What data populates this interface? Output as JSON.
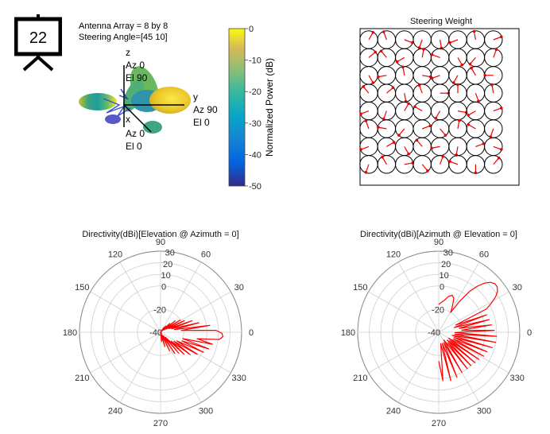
{
  "badge": {
    "number": "22"
  },
  "pattern3d": {
    "info_line1": "Antenna Array = 8 by 8",
    "info_line2": "Steering Angle=[45 10]",
    "axis_z": {
      "name": "z",
      "line1": "Az 0",
      "line2": "El 90"
    },
    "axis_y": {
      "name": "y",
      "line1": "Az 90",
      "line2": "El 0"
    },
    "axis_x": {
      "name": "x",
      "line1": "Az 0",
      "line2": "El 0"
    }
  },
  "colorbar": {
    "label": "Normalized Power (dB)",
    "ticks": [
      "0",
      "-10",
      "-20",
      "-30",
      "-40",
      "-50"
    ],
    "range": [
      -50,
      0
    ],
    "colormap": "parula"
  },
  "colors": {
    "trace": "#ff0000",
    "grid": "#cfcfcf",
    "circle": "#000000",
    "arrow": "#ee0000"
  },
  "chart_data": [
    {
      "type": "quiver",
      "title": "Steering Weight",
      "grid_size": [
        8,
        8
      ],
      "element": "unit circle",
      "phase_deg": [
        [
          60,
          110,
          340,
          250,
          280,
          200,
          100,
          20
        ],
        [
          40,
          130,
          210,
          80,
          160,
          300,
          230,
          70
        ],
        [
          300,
          190,
          100,
          350,
          200,
          240,
          120,
          180
        ],
        [
          130,
          40,
          280,
          110,
          0,
          90,
          290,
          100
        ],
        [
          200,
          250,
          60,
          150,
          240,
          350,
          210,
          20
        ],
        [
          110,
          170,
          230,
          20,
          310,
          80,
          150,
          250
        ],
        [
          200,
          30,
          300,
          130,
          190,
          260,
          20,
          340
        ],
        [
          250,
          120,
          10,
          310,
          70,
          160,
          270,
          50
        ]
      ]
    },
    {
      "type": "polar",
      "title": "Directivity(dBi)[Elevation @ Azimuth = 0]",
      "angle_ticks": [
        "0",
        "30",
        "60",
        "90",
        "120",
        "150",
        "180",
        "210",
        "240",
        "270",
        "300",
        "330"
      ],
      "r_ticks": [
        "-40",
        "-20",
        "0",
        "10",
        "20",
        "30"
      ],
      "rlim": [
        -40,
        30
      ],
      "angle_deg": [
        -90,
        -84,
        -78,
        -73,
        -69,
        -64,
        -60,
        -56,
        -52,
        -49,
        -46,
        -43,
        -40,
        -37,
        -34,
        -31,
        -28,
        -25,
        -22,
        -19,
        -16,
        -13,
        -10,
        -7,
        -4,
        -1,
        2,
        5,
        8,
        11,
        14,
        17,
        20,
        23,
        26,
        29,
        32,
        35,
        38,
        41,
        44,
        47,
        50,
        53,
        56,
        59,
        62,
        66,
        70,
        75,
        80,
        86,
        90
      ],
      "r_dbi": [
        -40,
        -32,
        -36,
        -27,
        -38,
        -22,
        -37,
        -18,
        -36,
        -16,
        -34,
        -12,
        -28,
        -8,
        -26,
        -3,
        -24,
        1,
        -20,
        4,
        -20,
        6,
        -8,
        11,
        14,
        13,
        8,
        -22,
        3,
        -28,
        -6,
        -30,
        -11,
        -32,
        -17,
        -34,
        -20,
        -36,
        -24,
        -37,
        -29,
        -38,
        -33,
        -39,
        -35,
        -40,
        -40,
        -40,
        -40,
        -40,
        -40,
        -40,
        -40
      ]
    },
    {
      "type": "polar",
      "title": "Directivity(dBi)[Azimuth @ Elevation = 0]",
      "angle_ticks": [
        "0",
        "30",
        "60",
        "90",
        "120",
        "150",
        "180",
        "210",
        "240",
        "270",
        "300",
        "330"
      ],
      "r_ticks": [
        "-40",
        "-20",
        "0",
        "10",
        "20",
        "30"
      ],
      "rlim": [
        -40,
        30
      ],
      "angle_deg": [
        -90,
        -85,
        -80,
        -76,
        -72,
        -68,
        -64,
        -60,
        -56,
        -52,
        -49,
        -46,
        -43,
        -40,
        -37,
        -34,
        -31,
        -28,
        -25,
        -22,
        -19,
        -16,
        -13,
        -10,
        -7,
        -4,
        -1,
        2,
        5,
        8,
        11,
        14,
        17,
        20,
        23,
        26,
        29,
        32,
        35,
        38,
        41,
        44,
        47,
        50,
        53,
        56,
        59,
        62,
        66,
        70,
        75,
        80,
        85,
        90
      ],
      "r_dbi": [
        -15,
        2,
        -30,
        3,
        -30,
        2,
        -30,
        0,
        -32,
        0,
        -28,
        0,
        -30,
        1,
        -28,
        2,
        -30,
        4,
        -26,
        5,
        -26,
        8,
        -28,
        10,
        -26,
        10,
        -26,
        8,
        -20,
        6,
        -22,
        5,
        -26,
        4,
        -24,
        6,
        12,
        18,
        22,
        24,
        24,
        22,
        18,
        12,
        4,
        -8,
        -20,
        -15,
        -8,
        -6,
        -8,
        -12,
        -14,
        -16
      ]
    }
  ]
}
